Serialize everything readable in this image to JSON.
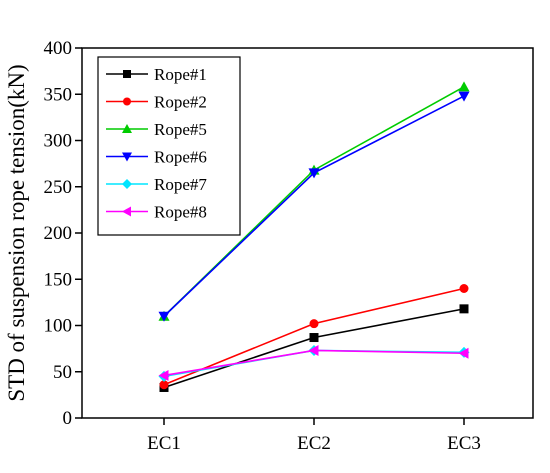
{
  "chart_data": {
    "type": "line",
    "title": "",
    "xlabel": "",
    "ylabel": "STD of suspension rope tension(kN)",
    "categories": [
      "EC1",
      "EC2",
      "EC3"
    ],
    "ylim": [
      0,
      400
    ],
    "yticks": [
      "0",
      "50",
      "100",
      "150",
      "200",
      "250",
      "300",
      "350",
      "400"
    ],
    "grid": false,
    "legend_position": "top-left",
    "series": [
      {
        "name": "Rope#1",
        "color": "#000000",
        "marker": "square",
        "values": [
          33,
          87,
          118
        ]
      },
      {
        "name": "Rope#2",
        "color": "#ff0000",
        "marker": "circle",
        "values": [
          36,
          102,
          140
        ]
      },
      {
        "name": "Rope#5",
        "color": "#00cc00",
        "marker": "triangle-up",
        "values": [
          110,
          268,
          358
        ]
      },
      {
        "name": "Rope#6",
        "color": "#0000ff",
        "marker": "triangle-down",
        "values": [
          110,
          265,
          348
        ]
      },
      {
        "name": "Rope#7",
        "color": "#00e5ff",
        "marker": "diamond",
        "values": [
          45,
          73,
          71
        ]
      },
      {
        "name": "Rope#8",
        "color": "#ff00ff",
        "marker": "triangle-left",
        "values": [
          46,
          73,
          70
        ]
      }
    ]
  }
}
